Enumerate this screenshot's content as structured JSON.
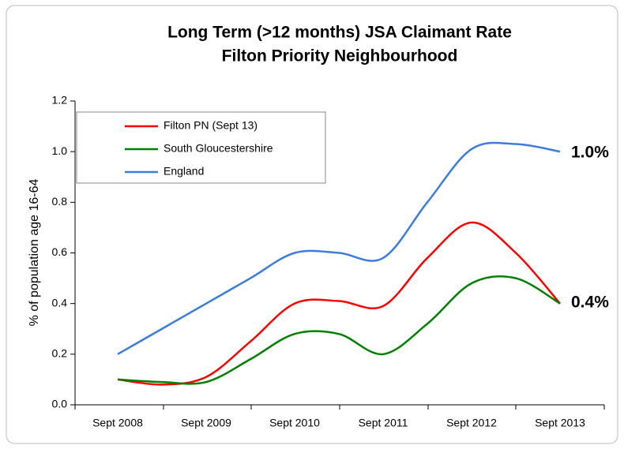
{
  "chart_data": {
    "type": "line",
    "title": [
      "Long Term (>12 months) JSA Claimant  Rate",
      "Filton Priority Neighbourhood"
    ],
    "y_label": "% of population age 16-64",
    "categories": [
      "Sept 2008",
      null,
      "Sept 2009",
      null,
      "Sept 2010",
      null,
      "Sept 2011",
      null,
      "Sept 2012",
      null,
      "Sept 2013"
    ],
    "series": [
      {
        "name": "Filton PN (Sept 13)",
        "color": "#ff0000",
        "values": [
          0.1,
          0.08,
          0.11,
          0.25,
          0.4,
          0.41,
          0.39,
          0.58,
          0.72,
          0.6,
          0.4
        ]
      },
      {
        "name": "South Gloucestershire",
        "color": "#008000",
        "values": [
          0.1,
          0.09,
          0.09,
          0.18,
          0.28,
          0.28,
          0.2,
          0.32,
          0.48,
          0.5,
          0.4
        ]
      },
      {
        "name": "England",
        "color": "#3b7ddd",
        "values": [
          0.2,
          0.3,
          0.4,
          0.5,
          0.6,
          0.6,
          0.58,
          0.8,
          1.01,
          1.03,
          1.0
        ]
      }
    ],
    "ylim": [
      0,
      1.2
    ],
    "yticks": [
      {
        "value": 0,
        "label": "0.0"
      },
      0.2,
      0.4,
      0.6,
      0.8,
      {
        "value": 1,
        "label": "1.0"
      },
      1.2
    ],
    "annotations": [
      "1.0%",
      "0.4%"
    ],
    "legend": "upper left",
    "grid": false
  }
}
